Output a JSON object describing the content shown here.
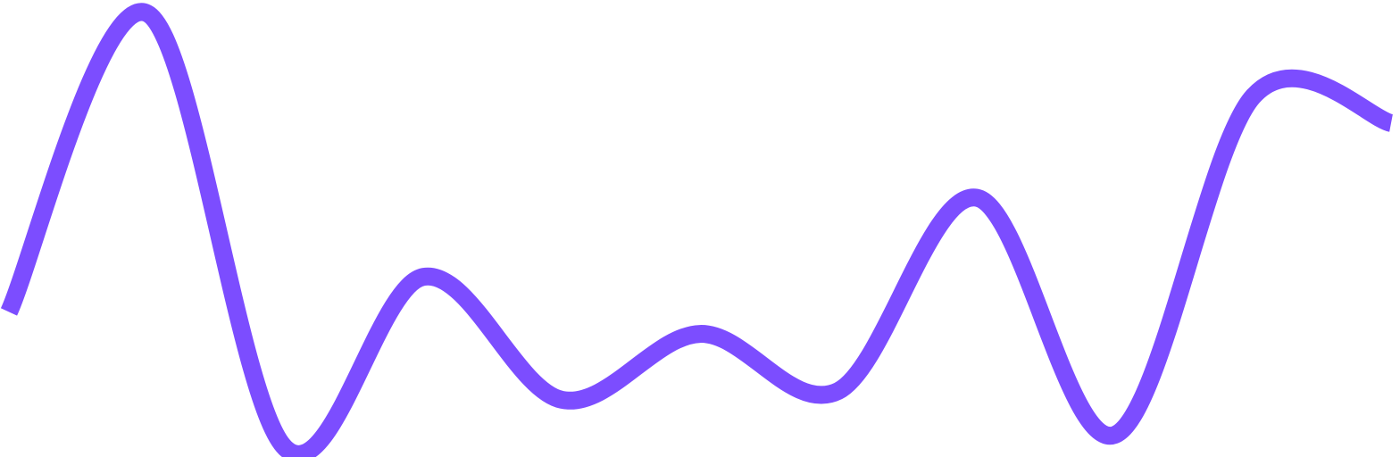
{
  "colors": {
    "background": "#ffffff",
    "line": "#7c4dff"
  },
  "chart_data": {
    "type": "line",
    "title": "",
    "xlabel": "",
    "ylabel": "",
    "grid": false,
    "legend": "none",
    "x": [
      0,
      1,
      2,
      3,
      4,
      5,
      6,
      7,
      8,
      9,
      10
    ],
    "series": [
      {
        "values": [
          31,
          99,
          0,
          39,
          11,
          26,
          13,
          57,
          3,
          80,
          74
        ]
      }
    ],
    "ylim": [
      0,
      100
    ]
  }
}
